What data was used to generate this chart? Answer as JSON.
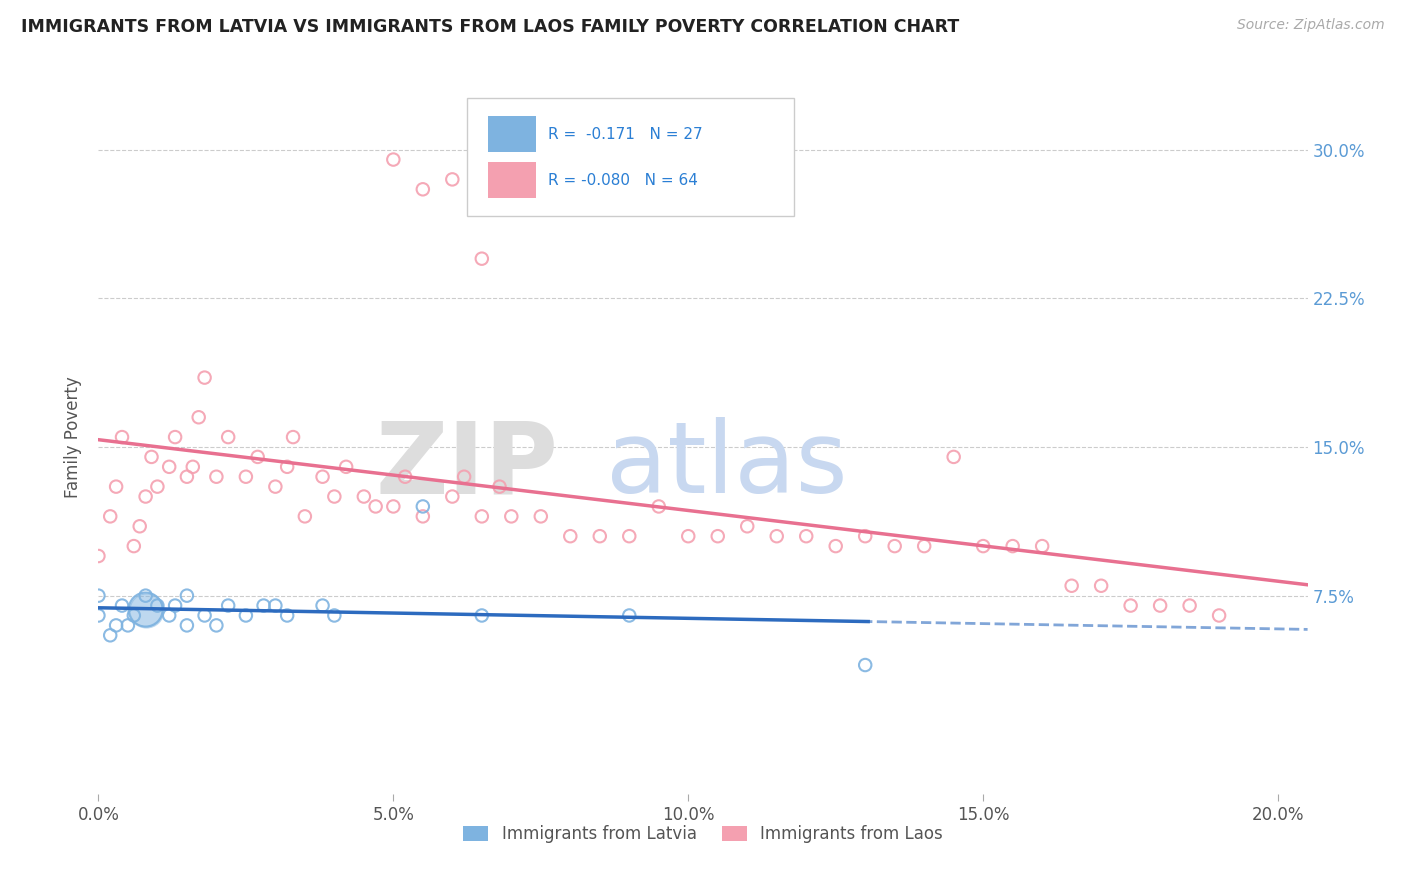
{
  "title": "IMMIGRANTS FROM LATVIA VS IMMIGRANTS FROM LAOS FAMILY POVERTY CORRELATION CHART",
  "source": "Source: ZipAtlas.com",
  "ylabel": "Family Poverty",
  "yticks": [
    "7.5%",
    "15.0%",
    "22.5%",
    "30.0%"
  ],
  "ytick_vals": [
    0.075,
    0.15,
    0.225,
    0.3
  ],
  "xlim": [
    0.0,
    0.205
  ],
  "ylim": [
    -0.025,
    0.335
  ],
  "legend_r1": "R =  -0.171",
  "legend_n1": "N = 27",
  "legend_r2": "R = -0.080",
  "legend_n2": "N = 64",
  "color_latvia": "#7eb3e0",
  "color_laos": "#f4a0b0",
  "trendline_latvia_color": "#2d6bbf",
  "trendline_laos_color": "#e87090",
  "latvia_scatter_x": [
    0.0,
    0.0,
    0.002,
    0.003,
    0.004,
    0.005,
    0.006,
    0.008,
    0.008,
    0.01,
    0.012,
    0.013,
    0.015,
    0.015,
    0.018,
    0.02,
    0.022,
    0.025,
    0.028,
    0.03,
    0.032,
    0.038,
    0.04,
    0.055,
    0.065,
    0.09,
    0.13
  ],
  "latvia_scatter_y": [
    0.065,
    0.075,
    0.055,
    0.06,
    0.07,
    0.06,
    0.065,
    0.068,
    0.075,
    0.07,
    0.065,
    0.07,
    0.06,
    0.075,
    0.065,
    0.06,
    0.07,
    0.065,
    0.07,
    0.07,
    0.065,
    0.07,
    0.065,
    0.12,
    0.065,
    0.065,
    0.04
  ],
  "latvia_sizes": [
    80,
    80,
    80,
    80,
    80,
    80,
    80,
    600,
    80,
    80,
    80,
    80,
    80,
    80,
    80,
    80,
    80,
    80,
    80,
    80,
    80,
    80,
    80,
    80,
    80,
    80,
    80
  ],
  "laos_scatter_x": [
    0.0,
    0.002,
    0.003,
    0.004,
    0.006,
    0.007,
    0.008,
    0.009,
    0.01,
    0.012,
    0.013,
    0.015,
    0.016,
    0.017,
    0.018,
    0.02,
    0.022,
    0.025,
    0.027,
    0.03,
    0.032,
    0.033,
    0.035,
    0.038,
    0.04,
    0.042,
    0.045,
    0.047,
    0.05,
    0.052,
    0.055,
    0.06,
    0.062,
    0.065,
    0.068,
    0.07,
    0.075,
    0.08,
    0.085,
    0.09,
    0.095,
    0.1,
    0.105,
    0.11,
    0.115,
    0.12,
    0.125,
    0.13,
    0.135,
    0.14,
    0.145,
    0.15,
    0.155,
    0.16,
    0.165,
    0.17,
    0.175,
    0.18,
    0.185,
    0.19,
    0.05,
    0.055,
    0.06,
    0.065
  ],
  "laos_scatter_y": [
    0.095,
    0.115,
    0.13,
    0.155,
    0.1,
    0.11,
    0.125,
    0.145,
    0.13,
    0.14,
    0.155,
    0.135,
    0.14,
    0.165,
    0.185,
    0.135,
    0.155,
    0.135,
    0.145,
    0.13,
    0.14,
    0.155,
    0.115,
    0.135,
    0.125,
    0.14,
    0.125,
    0.12,
    0.12,
    0.135,
    0.115,
    0.125,
    0.135,
    0.115,
    0.13,
    0.115,
    0.115,
    0.105,
    0.105,
    0.105,
    0.12,
    0.105,
    0.105,
    0.11,
    0.105,
    0.105,
    0.1,
    0.105,
    0.1,
    0.1,
    0.145,
    0.1,
    0.1,
    0.1,
    0.08,
    0.08,
    0.07,
    0.07,
    0.07,
    0.065,
    0.295,
    0.28,
    0.285,
    0.245
  ],
  "laos_sizes": [
    80,
    80,
    80,
    80,
    80,
    80,
    80,
    80,
    80,
    80,
    80,
    80,
    80,
    80,
    80,
    80,
    80,
    80,
    80,
    80,
    80,
    80,
    80,
    80,
    80,
    80,
    80,
    80,
    80,
    80,
    80,
    80,
    80,
    80,
    80,
    80,
    80,
    80,
    80,
    80,
    80,
    80,
    80,
    80,
    80,
    80,
    80,
    80,
    80,
    80,
    80,
    80,
    80,
    80,
    80,
    80,
    80,
    80,
    80,
    80,
    80,
    80,
    80,
    80
  ]
}
